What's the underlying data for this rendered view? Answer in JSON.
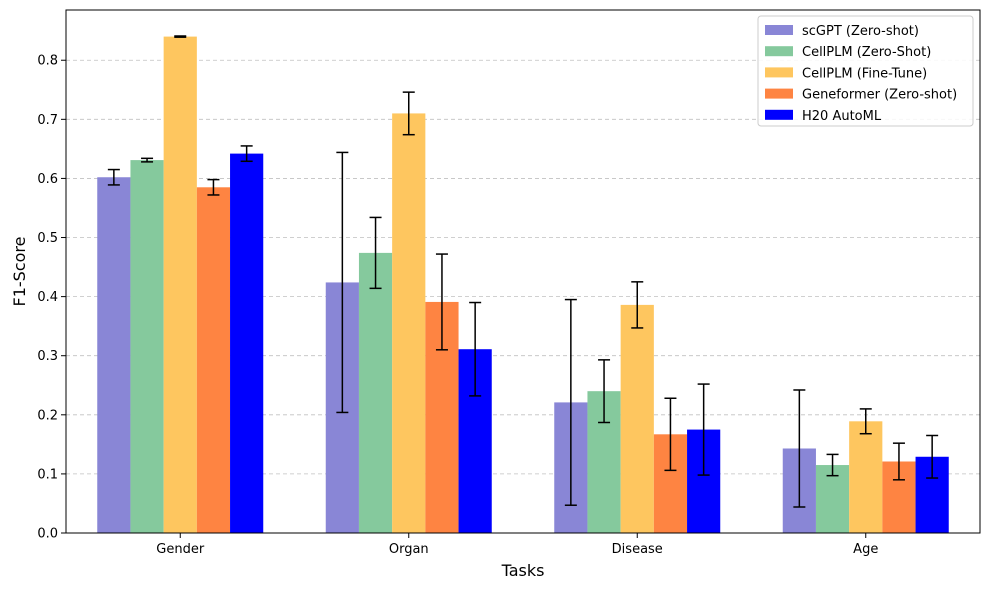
{
  "chart_data": {
    "type": "bar",
    "xlabel": "Tasks",
    "ylabel": "F1-Score",
    "ylim": [
      0,
      0.885
    ],
    "yticks": [
      "0.0",
      "0.1",
      "0.2",
      "0.3",
      "0.4",
      "0.5",
      "0.6",
      "0.7",
      "0.8"
    ],
    "grid": "y-dashed",
    "legend_position": "top-right",
    "categories": [
      "Gender",
      "Organ",
      "Disease",
      "Age"
    ],
    "series": [
      {
        "name": "scGPT (Zero-shot)",
        "color": "#8986d6",
        "values": [
          0.602,
          0.424,
          0.221,
          0.143
        ],
        "errors": [
          0.013,
          0.22,
          0.174,
          0.099
        ]
      },
      {
        "name": "CellPLM (Zero-Shot)",
        "color": "#85c99d",
        "values": [
          0.631,
          0.474,
          0.24,
          0.115
        ],
        "errors": [
          0.003,
          0.06,
          0.053,
          0.018
        ]
      },
      {
        "name": "CellPLM (Fine-Tune)",
        "color": "#fec65f",
        "values": [
          0.84,
          0.71,
          0.386,
          0.189
        ],
        "errors": [
          0.001,
          0.036,
          0.039,
          0.021
        ]
      },
      {
        "name": "Geneformer (Zero-shot)",
        "color": "#fe8442",
        "values": [
          0.585,
          0.391,
          0.167,
          0.121
        ],
        "errors": [
          0.013,
          0.081,
          0.061,
          0.031
        ]
      },
      {
        "name": "H20 AutoML",
        "color": "#0000fe",
        "values": [
          0.642,
          0.311,
          0.175,
          0.129
        ],
        "errors": [
          0.013,
          0.079,
          0.077,
          0.036
        ]
      }
    ]
  }
}
